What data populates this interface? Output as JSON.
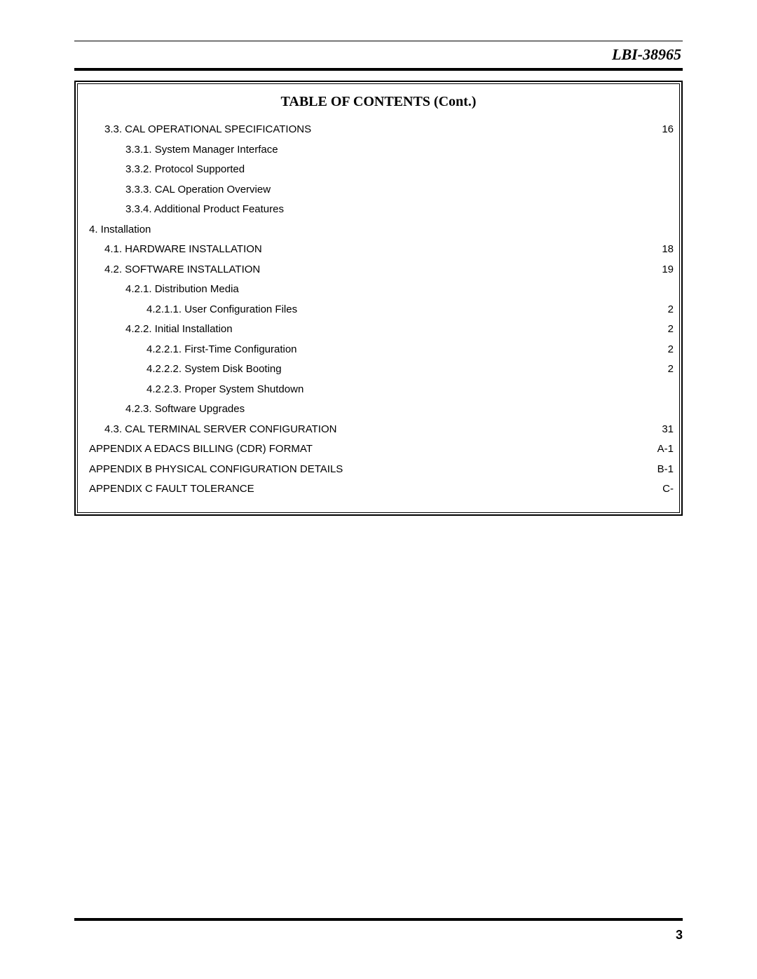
{
  "doc_id": "LBI-38965",
  "toc_title": "TABLE OF CONTENTS (Cont.)",
  "page_number": "3",
  "colors": {
    "text": "#000000",
    "background": "#ffffff",
    "rule": "#000000"
  },
  "typography": {
    "doc_id_font": "Times New Roman, italic bold, 22pt",
    "toc_title_font": "Times New Roman, bold, 20pt",
    "toc_body_font": "Helvetica/Arial, regular, 15px",
    "page_number_font": "Helvetica/Arial, bold, 18px"
  },
  "toc": [
    {
      "indent": 1,
      "label": "3.3.  CAL OPERATIONAL SPECIFICATIONS",
      "page": "16"
    },
    {
      "indent": 2,
      "label": "3.3.1.  System Manager Interface",
      "page": ""
    },
    {
      "indent": 2,
      "label": "3.3.2.  Protocol Supported",
      "page": ""
    },
    {
      "indent": 2,
      "label": "3.3.3.  CAL Operation Overview",
      "page": ""
    },
    {
      "indent": 2,
      "label": "3.3.4.  Additional Product Features",
      "page": ""
    },
    {
      "indent": 0,
      "label": "4.  Installation",
      "page": ""
    },
    {
      "indent": 1,
      "label": "4.1.  HARDWARE INSTALLATION",
      "page": "18"
    },
    {
      "indent": 1,
      "label": "4.2.  SOFTWARE INSTALLATION",
      "page": "19"
    },
    {
      "indent": 2,
      "label": "4.2.1.  Distribution Media",
      "page": ""
    },
    {
      "indent": 3,
      "label": "4.2.1.1.  User Configuration Files",
      "page": "2"
    },
    {
      "indent": 2,
      "label": "4.2.2.  Initial Installation",
      "page": "2"
    },
    {
      "indent": 3,
      "label": "4.2.2.1.  First-Time Configuration",
      "page": "2"
    },
    {
      "indent": 3,
      "label": "4.2.2.2.  System Disk Booting",
      "page": "2"
    },
    {
      "indent": 3,
      "label": "4.2.2.3.  Proper System Shutdown",
      "page": ""
    },
    {
      "indent": 2,
      "label": "4.2.3.  Software Upgrades",
      "page": ""
    },
    {
      "indent": 1,
      "label": "4.3.  CAL TERMINAL SERVER CONFIGURATION",
      "page": "31"
    },
    {
      "indent": 0,
      "label": "APPENDIX A EDACS BILLING (CDR) FORMAT",
      "page": "A-1"
    },
    {
      "indent": 0,
      "label": "APPENDIX B PHYSICAL CONFIGURATION DETAILS",
      "page": "B-1"
    },
    {
      "indent": 0,
      "label": "APPENDIX C FAULT TOLERANCE",
      "page": "C-"
    }
  ]
}
